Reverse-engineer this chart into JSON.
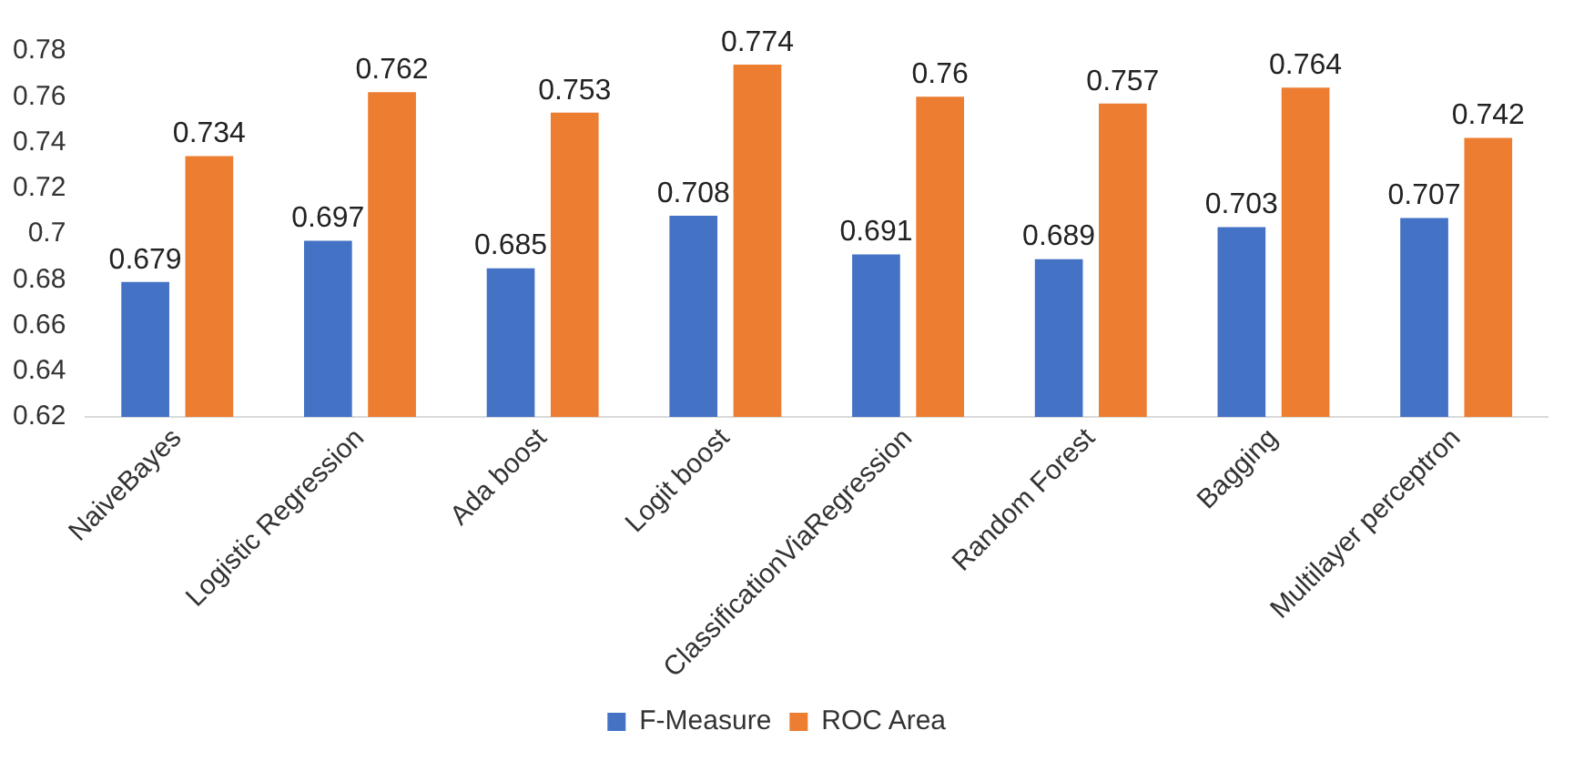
{
  "chart_data": {
    "type": "bar",
    "categories": [
      "NaiveBayes",
      "Logistic Regression",
      "Ada boost",
      "Logit boost",
      "ClassificationViaRegression",
      "Random Forest",
      "Bagging",
      "Multilayer perceptron"
    ],
    "series": [
      {
        "name": "F-Measure",
        "color": "#4472c4",
        "values": [
          0.679,
          0.697,
          0.685,
          0.708,
          0.691,
          0.689,
          0.703,
          0.707
        ]
      },
      {
        "name": "ROC Area",
        "color": "#ed7d31",
        "values": [
          0.734,
          0.762,
          0.753,
          0.774,
          0.76,
          0.757,
          0.764,
          0.742
        ]
      }
    ],
    "ylim": [
      0.62,
      0.78
    ],
    "yticks": [
      0.62,
      0.64,
      0.66,
      0.68,
      0.7,
      0.72,
      0.74,
      0.76,
      0.78
    ],
    "grid": false,
    "legend": "bottom",
    "data_labels": true
  }
}
